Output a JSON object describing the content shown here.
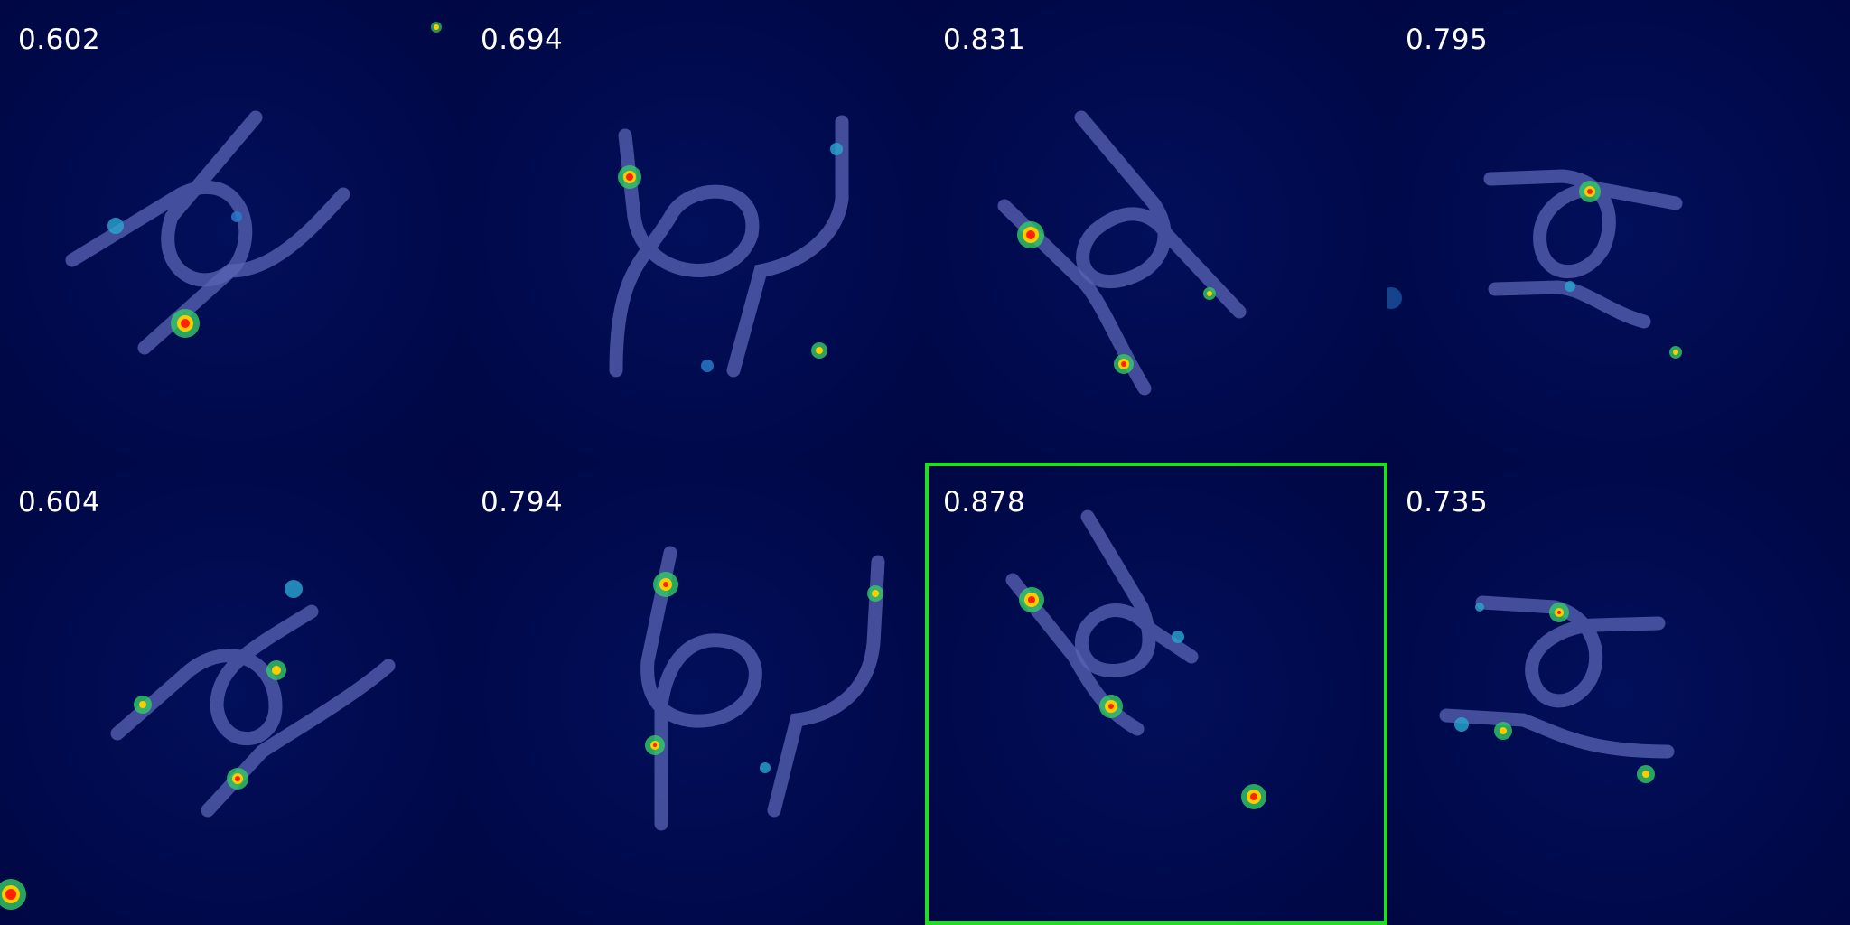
{
  "colors": {
    "background": "#00094a",
    "cable": "#5a64b4",
    "selection_border": "#22dd22",
    "score_text": "#ffffff"
  },
  "tiles": [
    {
      "score": "0.602",
      "selected": false
    },
    {
      "score": "0.694",
      "selected": false
    },
    {
      "score": "0.831",
      "selected": false
    },
    {
      "score": "0.795",
      "selected": false
    },
    {
      "score": "0.604",
      "selected": false
    },
    {
      "score": "0.794",
      "selected": false
    },
    {
      "score": "0.878",
      "selected": true
    },
    {
      "score": "0.735",
      "selected": false
    }
  ]
}
